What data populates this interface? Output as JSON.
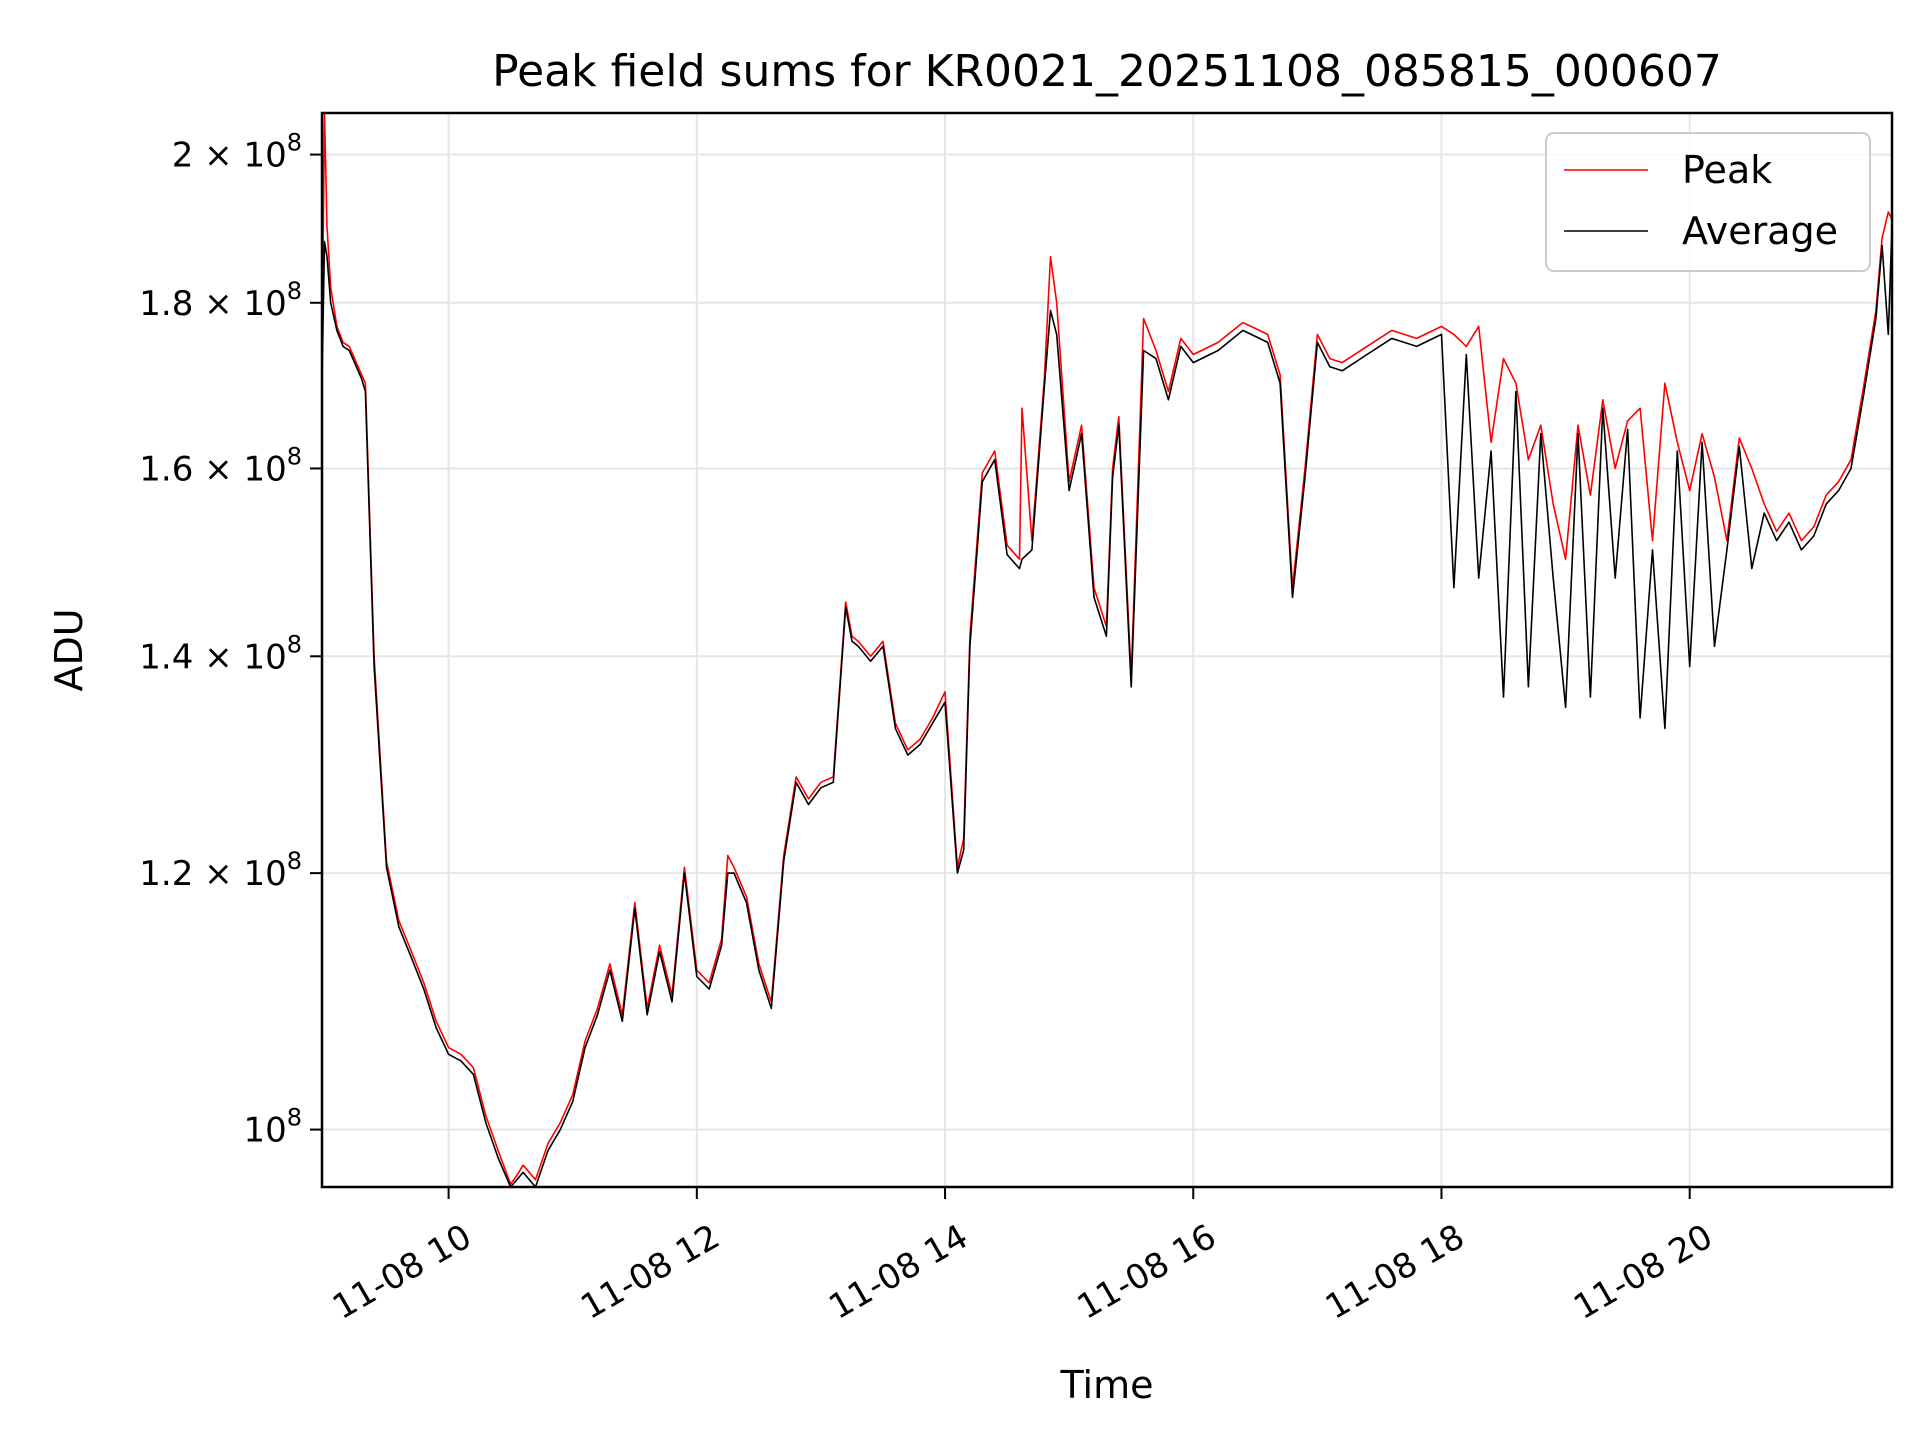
{
  "chart_data": {
    "type": "line",
    "title": "Peak field sums for KR0021_20251108_085815_000607",
    "xlabel": "Time",
    "ylabel": "ADU",
    "x_unit": "hours (2025-11-08 local clock)",
    "xlim": [
      8.98,
      21.63
    ],
    "ylim": [
      96000000.0,
      206000000.0
    ],
    "yscale": "log",
    "grid": true,
    "legend_position": "upper right",
    "x_ticks": [
      {
        "value": 10,
        "label": "11-08 10"
      },
      {
        "value": 12,
        "label": "11-08 12"
      },
      {
        "value": 14,
        "label": "11-08 14"
      },
      {
        "value": 16,
        "label": "11-08 16"
      },
      {
        "value": 18,
        "label": "11-08 18"
      },
      {
        "value": 20,
        "label": "11-08 20"
      }
    ],
    "y_ticks": [
      {
        "value": 100000000,
        "base": "10",
        "exp": "8"
      },
      {
        "value": 120000000,
        "base": "1.2 × 10",
        "exp": "8"
      },
      {
        "value": 140000000,
        "base": "1.4 × 10",
        "exp": "8"
      },
      {
        "value": 160000000,
        "base": "1.6 × 10",
        "exp": "8"
      },
      {
        "value": 180000000,
        "base": "1.8 × 10",
        "exp": "8"
      },
      {
        "value": 200000000,
        "base": "2 × 10",
        "exp": "8"
      }
    ],
    "series": [
      {
        "name": "Peak",
        "color": "#ff0000",
        "x": [
          8.98,
          9.0,
          9.02,
          9.05,
          9.1,
          9.15,
          9.2,
          9.3,
          9.33,
          9.4,
          9.5,
          9.6,
          9.7,
          9.8,
          9.9,
          10.0,
          10.1,
          10.2,
          10.3,
          10.4,
          10.5,
          10.55,
          10.6,
          10.7,
          10.8,
          10.9,
          11.0,
          11.1,
          11.2,
          11.3,
          11.4,
          11.5,
          11.6,
          11.7,
          11.8,
          11.9,
          12.0,
          12.1,
          12.2,
          12.25,
          12.3,
          12.4,
          12.5,
          12.6,
          12.7,
          12.8,
          12.9,
          13.0,
          13.1,
          13.2,
          13.25,
          13.3,
          13.4,
          13.5,
          13.6,
          13.7,
          13.8,
          13.9,
          14.0,
          14.1,
          14.15,
          14.2,
          14.3,
          14.4,
          14.5,
          14.6,
          14.62,
          14.7,
          14.8,
          14.85,
          14.9,
          15.0,
          15.1,
          15.2,
          15.3,
          15.35,
          15.4,
          15.5,
          15.6,
          15.7,
          15.8,
          15.9,
          16.0,
          16.2,
          16.4,
          16.6,
          16.7,
          16.8,
          16.9,
          17.0,
          17.1,
          17.2,
          17.4,
          17.6,
          17.8,
          18.0,
          18.1,
          18.2,
          18.3,
          18.4,
          18.5,
          18.6,
          18.7,
          18.8,
          18.9,
          19.0,
          19.1,
          19.2,
          19.3,
          19.4,
          19.5,
          19.6,
          19.7,
          19.8,
          19.9,
          20.0,
          20.1,
          20.2,
          20.3,
          20.4,
          20.5,
          20.6,
          20.7,
          20.8,
          20.9,
          21.0,
          21.1,
          21.2,
          21.3,
          21.4,
          21.5,
          21.55,
          21.6,
          21.63
        ],
        "values": [
          174000000,
          206000000,
          190000000,
          182000000,
          177000000,
          175000000,
          174500000,
          171000000,
          170000000,
          140000000,
          121000000,
          116000000,
          113500000,
          111000000,
          108000000,
          106000000,
          105500000,
          104500000,
          101000000,
          98500000,
          96200000,
          96800000,
          97500000,
          96500000,
          99000000,
          100500000,
          102500000,
          106500000,
          109000000,
          112500000,
          108500000,
          117500000,
          109000000,
          114000000,
          110000000,
          120500000,
          112000000,
          111000000,
          114500000,
          121500000,
          120500000,
          118000000,
          112500000,
          109500000,
          121500000,
          128500000,
          126500000,
          128000000,
          128500000,
          145500000,
          142000000,
          141500000,
          140000000,
          141500000,
          133500000,
          131000000,
          132000000,
          134000000,
          136500000,
          120500000,
          123000000,
          142000000,
          159500000,
          162000000,
          151500000,
          150000000,
          167000000,
          152000000,
          170500000,
          186000000,
          180000000,
          158500000,
          165000000,
          147000000,
          143000000,
          160000000,
          166000000,
          138000000,
          178000000,
          174000000,
          169000000,
          175500000,
          173500000,
          175000000,
          177500000,
          176000000,
          171000000,
          147000000,
          160000000,
          176000000,
          173000000,
          172500000,
          174500000,
          176500000,
          175500000,
          177000000,
          176000000,
          174500000,
          177000000,
          163000000,
          173000000,
          170000000,
          161000000,
          165000000,
          156000000,
          150000000,
          165000000,
          157000000,
          168000000,
          160000000,
          165500000,
          167000000,
          152000000,
          170000000,
          163000000,
          157500000,
          164000000,
          159000000,
          152000000,
          163500000,
          160000000,
          156000000,
          153000000,
          155000000,
          152000000,
          153500000,
          157000000,
          158500000,
          161000000,
          169500000,
          179000000,
          188500000,
          192000000,
          191000000
        ]
      },
      {
        "name": "Average",
        "color": "#000000",
        "x": [
          8.98,
          9.0,
          9.02,
          9.05,
          9.1,
          9.15,
          9.2,
          9.3,
          9.33,
          9.4,
          9.5,
          9.6,
          9.7,
          9.8,
          9.9,
          10.0,
          10.1,
          10.2,
          10.3,
          10.4,
          10.5,
          10.55,
          10.6,
          10.7,
          10.8,
          10.9,
          11.0,
          11.1,
          11.2,
          11.3,
          11.4,
          11.5,
          11.6,
          11.7,
          11.8,
          11.9,
          12.0,
          12.1,
          12.2,
          12.25,
          12.3,
          12.4,
          12.5,
          12.6,
          12.7,
          12.8,
          12.9,
          13.0,
          13.1,
          13.2,
          13.25,
          13.3,
          13.4,
          13.5,
          13.6,
          13.7,
          13.8,
          13.9,
          14.0,
          14.1,
          14.15,
          14.2,
          14.3,
          14.4,
          14.5,
          14.6,
          14.62,
          14.7,
          14.8,
          14.85,
          14.9,
          15.0,
          15.1,
          15.2,
          15.3,
          15.35,
          15.4,
          15.5,
          15.6,
          15.7,
          15.8,
          15.9,
          16.0,
          16.2,
          16.4,
          16.6,
          16.7,
          16.8,
          16.9,
          17.0,
          17.1,
          17.2,
          17.4,
          17.6,
          17.8,
          18.0,
          18.1,
          18.2,
          18.3,
          18.4,
          18.5,
          18.6,
          18.7,
          18.8,
          18.9,
          19.0,
          19.1,
          19.2,
          19.3,
          19.4,
          19.5,
          19.6,
          19.7,
          19.8,
          19.9,
          20.0,
          20.1,
          20.2,
          20.3,
          20.4,
          20.5,
          20.6,
          20.7,
          20.8,
          20.9,
          21.0,
          21.1,
          21.2,
          21.3,
          21.4,
          21.5,
          21.55,
          21.6,
          21.63
        ],
        "values": [
          170000000,
          188000000,
          186000000,
          180000000,
          176500000,
          174500000,
          174000000,
          170500000,
          169000000,
          139000000,
          120500000,
          115500000,
          113000000,
          110500000,
          107500000,
          105500000,
          105000000,
          104000000,
          100500000,
          98000000,
          96000000,
          96500000,
          97000000,
          96000000,
          98500000,
          100000000,
          102000000,
          106000000,
          108500000,
          112000000,
          108000000,
          117000000,
          108500000,
          113500000,
          109500000,
          120000000,
          111500000,
          110500000,
          114000000,
          120000000,
          120000000,
          117500000,
          112000000,
          109000000,
          121000000,
          128000000,
          126000000,
          127500000,
          128000000,
          145000000,
          141500000,
          141000000,
          139500000,
          141000000,
          133000000,
          130500000,
          131500000,
          133500000,
          135500000,
          120000000,
          122000000,
          141000000,
          158500000,
          161000000,
          150500000,
          149000000,
          150000000,
          151000000,
          169500000,
          179000000,
          176000000,
          157500000,
          164000000,
          146000000,
          142000000,
          159000000,
          165000000,
          137000000,
          174000000,
          173000000,
          168000000,
          174500000,
          172500000,
          174000000,
          176500000,
          175000000,
          170000000,
          146000000,
          159000000,
          175000000,
          172000000,
          171500000,
          173500000,
          175500000,
          174500000,
          176000000,
          147000000,
          173500000,
          148000000,
          162000000,
          136000000,
          169000000,
          137000000,
          164000000,
          148000000,
          135000000,
          164000000,
          136000000,
          167000000,
          148000000,
          164500000,
          134000000,
          151000000,
          133000000,
          162000000,
          139000000,
          163000000,
          141000000,
          151000000,
          162500000,
          149000000,
          155000000,
          152000000,
          154000000,
          151000000,
          152500000,
          156000000,
          157500000,
          160000000,
          168500000,
          178000000,
          187500000,
          176000000,
          190000000
        ]
      }
    ]
  },
  "legend": {
    "items": [
      {
        "label": "Peak",
        "color": "#ff0000"
      },
      {
        "label": "Average",
        "color": "#000000"
      }
    ]
  }
}
